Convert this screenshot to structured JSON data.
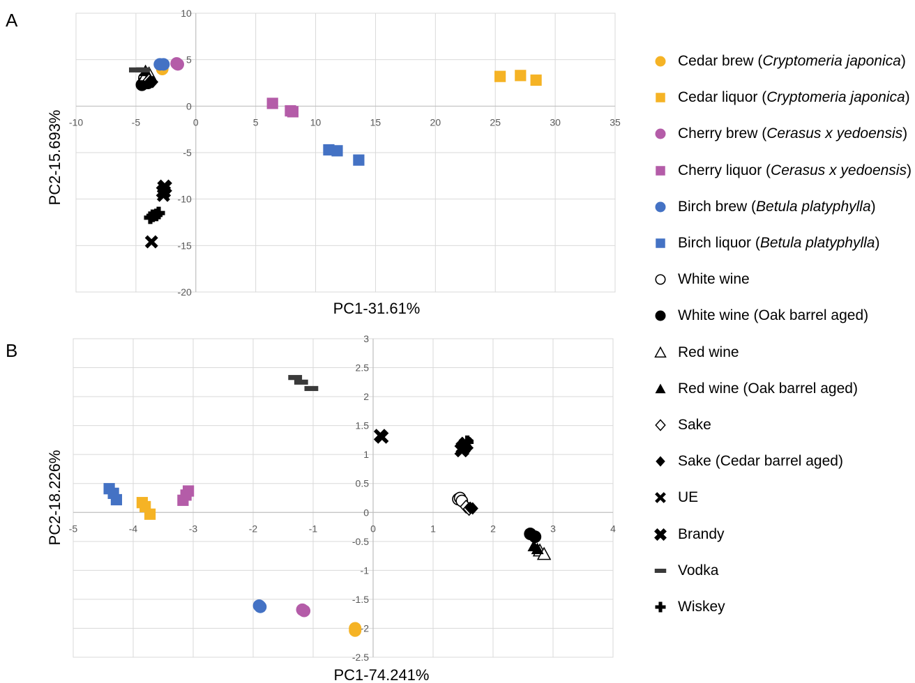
{
  "figure": {
    "panel_a_label": "A",
    "panel_b_label": "B"
  },
  "legend": [
    {
      "key": "cedar_brew",
      "label": "Cedar brew (",
      "italic": "Cryptomeria japonica",
      "tail": ")",
      "marker": "circle",
      "color": "#F5B325"
    },
    {
      "key": "cedar_liquor",
      "label": "Cedar liquor (",
      "italic": "Cryptomeria japonica",
      "tail": ")",
      "marker": "square",
      "color": "#F5B325"
    },
    {
      "key": "cherry_brew",
      "label": "Cherry brew (",
      "italic": "Cerasus x yedoensis",
      "tail": ")",
      "marker": "circle",
      "color": "#B45CA8"
    },
    {
      "key": "cherry_liquor",
      "label": "Cherry liquor (",
      "italic": "Cerasus x yedoensis",
      "tail": ")",
      "marker": "square",
      "color": "#B45CA8"
    },
    {
      "key": "birch_brew",
      "label": "Birch brew (",
      "italic": "Betula platyphylla",
      "tail": ")",
      "marker": "circle",
      "color": "#4472C4"
    },
    {
      "key": "birch_liquor",
      "label": "Birch liquor (",
      "italic": "Betula platyphylla",
      "tail": ")",
      "marker": "square",
      "color": "#4472C4"
    },
    {
      "key": "white_wine",
      "label": "White wine",
      "italic": "",
      "tail": "",
      "marker": "circle-open",
      "color": "#000000"
    },
    {
      "key": "white_wine_oak",
      "label": "White wine (Oak barrel aged)",
      "italic": "",
      "tail": "",
      "marker": "circle",
      "color": "#000000"
    },
    {
      "key": "red_wine",
      "label": "Red wine",
      "italic": "",
      "tail": "",
      "marker": "triangle-open",
      "color": "#000000"
    },
    {
      "key": "red_wine_oak",
      "label": "Red wine (Oak barrel aged)",
      "italic": "",
      "tail": "",
      "marker": "triangle",
      "color": "#000000"
    },
    {
      "key": "sake",
      "label": "Sake",
      "italic": "",
      "tail": "",
      "marker": "diamond-open",
      "color": "#000000"
    },
    {
      "key": "sake_cedar",
      "label": "Sake (Cedar barrel aged)",
      "italic": "",
      "tail": "",
      "marker": "diamond",
      "color": "#000000"
    },
    {
      "key": "ue",
      "label": "UE",
      "italic": "",
      "tail": "",
      "marker": "x",
      "color": "#000000"
    },
    {
      "key": "brandy",
      "label": "Brandy",
      "italic": "",
      "tail": "",
      "marker": "x-bold",
      "color": "#000000"
    },
    {
      "key": "vodka",
      "label": "Vodka",
      "italic": "",
      "tail": "",
      "marker": "dash",
      "color": "#3a3a3a"
    },
    {
      "key": "wiskey",
      "label": "Wiskey",
      "italic": "",
      "tail": "",
      "marker": "plus",
      "color": "#000000"
    }
  ],
  "chart_data": [
    {
      "type": "scatter",
      "panel": "A",
      "xlabel": "PC1-31.61%",
      "ylabel": "PC2-15.693%",
      "xlim": [
        -10,
        35
      ],
      "ylim": [
        -20,
        10
      ],
      "xticks": [
        -10,
        -5,
        0,
        5,
        10,
        15,
        20,
        25,
        30,
        35
      ],
      "yticks": [
        -20,
        -15,
        -10,
        -5,
        0,
        5,
        10
      ],
      "grid": true,
      "series": [
        {
          "key": "cedar_brew",
          "points": [
            [
              -2.8,
              4.0
            ],
            [
              -2.9,
              4.4
            ]
          ]
        },
        {
          "key": "cedar_liquor",
          "points": [
            [
              25.4,
              3.2
            ],
            [
              27.1,
              3.3
            ],
            [
              28.4,
              2.8
            ]
          ]
        },
        {
          "key": "cherry_brew",
          "points": [
            [
              -1.5,
              4.5
            ],
            [
              -1.6,
              4.6
            ]
          ]
        },
        {
          "key": "cherry_liquor",
          "points": [
            [
              6.4,
              0.3
            ],
            [
              7.9,
              -0.5
            ],
            [
              8.1,
              -0.6
            ]
          ]
        },
        {
          "key": "birch_brew",
          "points": [
            [
              -3.0,
              4.5
            ],
            [
              -2.7,
              4.5
            ]
          ]
        },
        {
          "key": "birch_liquor",
          "points": [
            [
              11.1,
              -4.7
            ],
            [
              11.8,
              -4.8
            ],
            [
              13.6,
              -5.8
            ]
          ]
        },
        {
          "key": "white_wine",
          "points": [
            [
              -4.1,
              3.2
            ],
            [
              -4.3,
              3.0
            ]
          ]
        },
        {
          "key": "white_wine_oak",
          "points": [
            [
              -4.5,
              2.3
            ],
            [
              -4.3,
              2.6
            ],
            [
              -4.0,
              2.5
            ]
          ]
        },
        {
          "key": "red_wine",
          "points": [
            [
              -3.9,
              3.5
            ],
            [
              -4.2,
              3.3
            ]
          ]
        },
        {
          "key": "red_wine_oak",
          "points": [
            [
              -4.2,
              3.8
            ],
            [
              -4.0,
              3.0
            ]
          ]
        },
        {
          "key": "sake",
          "points": [
            [
              -3.9,
              2.8
            ]
          ]
        },
        {
          "key": "sake_cedar",
          "points": [
            [
              -3.8,
              2.7
            ],
            [
              -3.6,
              2.6
            ]
          ]
        },
        {
          "key": "ue",
          "points": [
            [
              -2.7,
              -9.6
            ],
            [
              -3.7,
              -14.6
            ]
          ]
        },
        {
          "key": "brandy",
          "points": [
            [
              -2.6,
              -8.7
            ],
            [
              -2.7,
              -9.2
            ]
          ]
        },
        {
          "key": "vodka",
          "points": [
            [
              -5.0,
              3.9
            ],
            [
              -4.4,
              3.9
            ]
          ]
        },
        {
          "key": "wiskey",
          "points": [
            [
              -3.8,
              -12.0
            ],
            [
              -3.3,
              -11.7
            ],
            [
              -3.1,
              -11.5
            ],
            [
              -3.6,
              -11.8
            ]
          ]
        }
      ]
    },
    {
      "type": "scatter",
      "panel": "B",
      "xlabel": "PC1-74.241%",
      "ylabel": "PC2-18.226%",
      "xlim": [
        -5,
        4
      ],
      "ylim": [
        -2.5,
        3
      ],
      "xticks": [
        -5,
        -4,
        -3,
        -2,
        -1,
        0,
        1,
        2,
        3,
        4
      ],
      "yticks": [
        -2.5,
        -2,
        -1.5,
        -1,
        -0.5,
        0,
        0.5,
        1,
        1.5,
        2,
        2.5,
        3
      ],
      "grid": true,
      "series": [
        {
          "key": "cedar_brew",
          "points": [
            [
              -0.3,
              -2.04
            ],
            [
              -0.3,
              -2.0
            ]
          ]
        },
        {
          "key": "cedar_liquor",
          "points": [
            [
              -3.85,
              0.17
            ],
            [
              -3.8,
              0.1
            ],
            [
              -3.72,
              -0.03
            ]
          ]
        },
        {
          "key": "cherry_brew",
          "points": [
            [
              -1.18,
              -1.68
            ],
            [
              -1.15,
              -1.7
            ]
          ]
        },
        {
          "key": "cherry_liquor",
          "points": [
            [
              -3.17,
              0.21
            ],
            [
              -3.12,
              0.3
            ],
            [
              -3.08,
              0.37
            ]
          ]
        },
        {
          "key": "birch_brew",
          "points": [
            [
              -1.9,
              -1.61
            ],
            [
              -1.88,
              -1.63
            ]
          ]
        },
        {
          "key": "birch_liquor",
          "points": [
            [
              -4.4,
              0.41
            ],
            [
              -4.33,
              0.33
            ],
            [
              -4.28,
              0.22
            ]
          ]
        },
        {
          "key": "white_wine",
          "points": [
            [
              1.42,
              0.23
            ],
            [
              1.45,
              0.25
            ],
            [
              1.48,
              0.2
            ]
          ]
        },
        {
          "key": "white_wine_oak",
          "points": [
            [
              2.62,
              -0.37
            ],
            [
              2.7,
              -0.42
            ]
          ]
        },
        {
          "key": "red_wine",
          "points": [
            [
              2.78,
              -0.66
            ],
            [
              2.85,
              -0.72
            ]
          ]
        },
        {
          "key": "red_wine_oak",
          "points": [
            [
              2.68,
              -0.58
            ],
            [
              2.74,
              -0.63
            ]
          ]
        },
        {
          "key": "sake",
          "points": [
            [
              1.55,
              0.1
            ],
            [
              1.6,
              0.06
            ]
          ]
        },
        {
          "key": "sake_cedar",
          "points": [
            [
              1.62,
              0.08
            ],
            [
              1.66,
              0.07
            ]
          ]
        },
        {
          "key": "ue",
          "points": [
            [
              0.12,
              1.33
            ],
            [
              0.15,
              1.3
            ]
          ]
        },
        {
          "key": "brandy",
          "points": [
            [
              1.5,
              1.12
            ],
            [
              1.55,
              1.18
            ],
            [
              1.48,
              1.08
            ]
          ]
        },
        {
          "key": "vodka",
          "points": [
            [
              -1.3,
              2.33
            ],
            [
              -1.2,
              2.25
            ],
            [
              -1.03,
              2.14
            ]
          ]
        },
        {
          "key": "wiskey",
          "points": [
            [
              1.57,
              1.22
            ],
            [
              1.53,
              1.14
            ]
          ]
        }
      ]
    }
  ]
}
